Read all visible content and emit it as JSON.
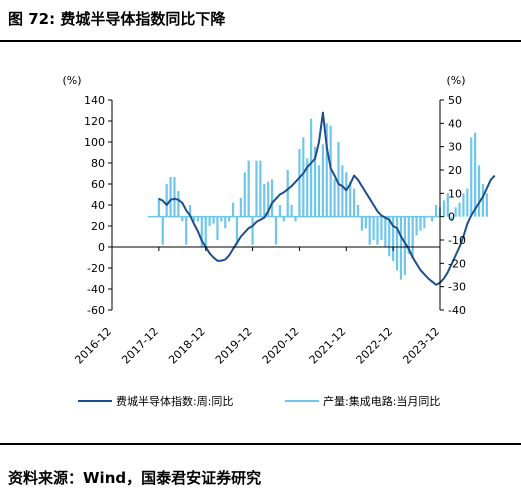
{
  "figure": {
    "title": "图 72: 费城半导体指数同比下降",
    "source": "资料来源：Wind，国泰君安证券研究"
  },
  "colors": {
    "sox": "#1f4e8c",
    "ic": "#6ec6ea"
  },
  "chart_data": {
    "type": "line",
    "left_unit": "(%)",
    "right_unit": "(%)",
    "ylim_left": [
      -60,
      140
    ],
    "yticks_left": [
      140,
      120,
      100,
      80,
      60,
      40,
      20,
      0,
      -20,
      -40,
      -60
    ],
    "ylim_right": [
      -40,
      50
    ],
    "yticks_right": [
      50,
      40,
      30,
      20,
      10,
      0,
      -10,
      -20,
      -30,
      -40
    ],
    "xticks": [
      "2016-12",
      "2017-12",
      "2018-12",
      "2019-12",
      "2020-12",
      "2021-12",
      "2022-12",
      "2023-12"
    ],
    "legend": {
      "placement": "bottom"
    },
    "series": [
      {
        "name": "费城半导体指数:周:同比",
        "axis": "left",
        "style": "line",
        "x_start": "2017-12",
        "x_step_months": 1,
        "values": [
          46,
          44,
          40,
          45,
          46,
          45,
          42,
          35,
          30,
          22,
          15,
          6,
          0,
          -6,
          -10,
          -13,
          -13,
          -12,
          -8,
          -2,
          4,
          10,
          14,
          18,
          20,
          24,
          26,
          28,
          34,
          42,
          46,
          50,
          52,
          55,
          58,
          62,
          66,
          70,
          76,
          80,
          84,
          100,
          128,
          95,
          75,
          68,
          60,
          58,
          54,
          60,
          68,
          64,
          58,
          52,
          46,
          40,
          34,
          30,
          28,
          26,
          20,
          18,
          10,
          4,
          -2,
          -10,
          -16,
          -22,
          -26,
          -30,
          -33,
          -36,
          -34,
          -30,
          -24,
          -16,
          -8,
          0,
          10,
          22,
          30,
          36,
          42,
          48,
          56,
          64,
          68
        ]
      },
      {
        "name": "产量:集成电路:当月同比",
        "axis": "right",
        "style": "bar",
        "x_start": "2017-12",
        "x_step_months": 1,
        "values": [
          8,
          -12,
          14,
          17,
          17,
          11,
          -2,
          -12,
          5,
          -2,
          -2,
          -13,
          -13,
          -4,
          -3,
          -10,
          -2,
          -5,
          -2,
          6,
          -12,
          8,
          19,
          24,
          -12,
          24,
          24,
          14,
          15,
          16,
          -12,
          5,
          -2,
          20,
          5,
          -2,
          29,
          34,
          25,
          42,
          30,
          22,
          31,
          40,
          39,
          16,
          32,
          22,
          19,
          15,
          12,
          5,
          -6,
          -5,
          -12,
          -10,
          -12,
          -10,
          -13,
          -17,
          -19,
          -23,
          -27,
          -25,
          -16,
          -18,
          -8,
          -6,
          -5,
          0,
          -2,
          5,
          4,
          7,
          10,
          -2,
          4,
          6,
          10,
          12,
          34,
          36,
          22,
          14,
          10
        ]
      }
    ]
  }
}
